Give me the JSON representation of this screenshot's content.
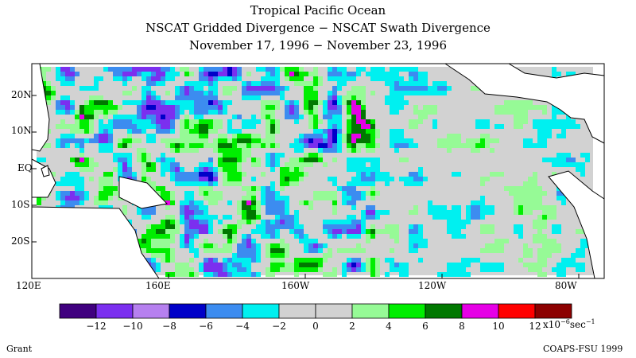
{
  "header": {
    "title": "Tropical Pacific Ocean",
    "subtitle": "NSCAT Gridded Divergence − NSCAT Swath Divergence",
    "dates": "November 17, 1996 − November 23, 1996"
  },
  "map": {
    "lat_labels": [
      "20N",
      "10N",
      "EQ",
      "10S",
      "20S"
    ],
    "lon_labels": [
      "120E",
      "160E",
      "160W",
      "120W",
      "80W"
    ],
    "land_color": "#ffffff",
    "coast_color": "#000000"
  },
  "colorbar": {
    "colors": [
      "#40007f",
      "#7b2fef",
      "#b680ef",
      "#0000c8",
      "#3c8cf0",
      "#00f0f0",
      "#d2d2d2",
      "#d2d2d2",
      "#96fa96",
      "#00ee00",
      "#007800",
      "#e600e6",
      "#ff0000",
      "#8c0000"
    ],
    "tick_labels": [
      "−12",
      "−10",
      "−8",
      "−6",
      "−4",
      "−2",
      "0",
      "2",
      "4",
      "6",
      "8",
      "10",
      "12"
    ],
    "unit_prefix": "x10",
    "unit_exp1": "−6",
    "unit_mid": "sec",
    "unit_exp2": "−1"
  },
  "footer": {
    "left": "Grant",
    "right": "COAPS-FSU 1999"
  }
}
